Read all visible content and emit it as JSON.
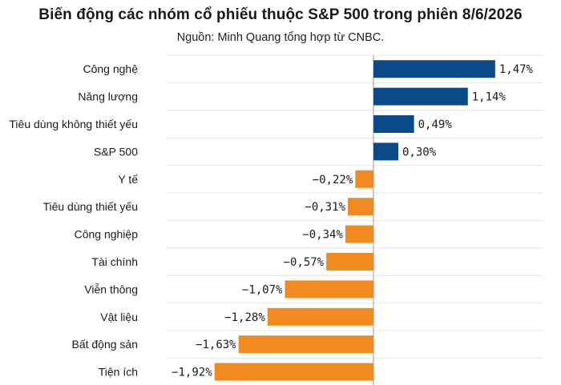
{
  "title": "Biến động các nhóm cổ phiếu thuộc S&P 500 trong phiên 8/6/2026",
  "subtitle": "Nguồn: Minh Quang tổng hợp từ CNBC.",
  "colors": {
    "positive": "#0c4a87",
    "negative": "#f28a22",
    "grid": "#e4e4e4",
    "axis": "#9a9a9a"
  },
  "chart_data": {
    "type": "bar",
    "orientation": "horizontal",
    "title": "Biến động các nhóm cổ phiếu thuộc S&P 500 trong phiên 8/6/2026",
    "subtitle": "Nguồn: Minh Quang tổng hợp từ CNBC.",
    "xlabel": "",
    "ylabel": "",
    "xlim": [
      -2.25,
      2.0
    ],
    "grid": "horizontal lines between rows",
    "categories": [
      "Công nghệ",
      "Năng lượng",
      "Tiêu dùng không thiết yếu",
      "S&P 500",
      "Y tế",
      "Tiêu dùng thiết yếu",
      "Công nghiệp",
      "Tài chính",
      "Viễn thông",
      "Vật liệu",
      "Bất động sản",
      "Tiện ích"
    ],
    "values": [
      1.47,
      1.14,
      0.49,
      0.3,
      -0.22,
      -0.31,
      -0.34,
      -0.57,
      -1.07,
      -1.28,
      -1.63,
      -1.92
    ],
    "value_labels": [
      "1,47%",
      "1,14%",
      "0,49%",
      "0,30%",
      "−0,22%",
      "−0,31%",
      "−0,34%",
      "−0,57%",
      "−1,07%",
      "−1,28%",
      "−1,63%",
      "−1,92%"
    ]
  }
}
